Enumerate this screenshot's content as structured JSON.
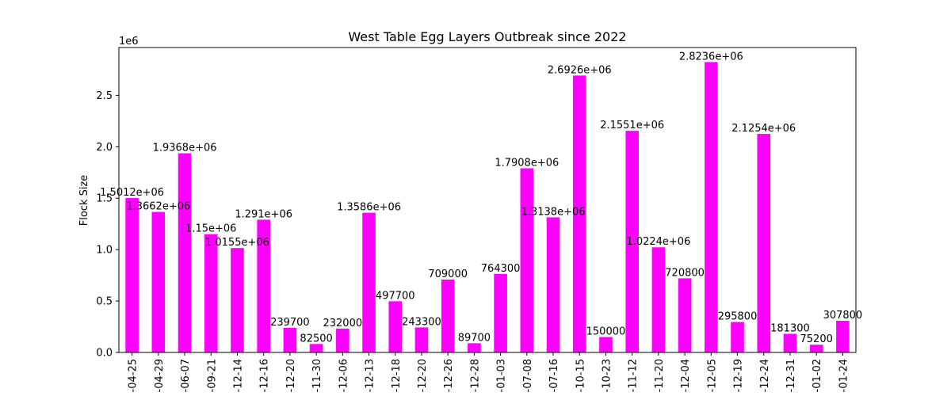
{
  "chart_data": {
    "type": "bar",
    "title": "West Table Egg Layers Outbreak since 2022",
    "xlabel": "",
    "ylabel": "Flock Size",
    "y_offset_label": "1e6",
    "ylim": [
      0,
      2965000
    ],
    "yticks": [
      0.0,
      0.5,
      1.0,
      1.5,
      2.0,
      2.5
    ],
    "bar_color": "#ff00ff",
    "grid": false,
    "legend": "none",
    "categories": [
      "-04-25",
      "-04-29",
      "-06-07",
      "-09-21",
      "-12-14",
      "-12-16",
      "-12-20",
      "-11-30",
      "-12-06",
      "-12-13",
      "-12-18",
      "-12-20",
      "-12-26",
      "-12-28",
      "-01-03",
      "-07-08",
      "-07-16",
      "-10-15",
      "-10-23",
      "-11-12",
      "-11-20",
      "-12-04",
      "-12-05",
      "-12-19",
      "-12-24",
      "-12-31",
      "-01-02",
      "-01-24"
    ],
    "values": [
      1501200,
      1366200,
      1936800,
      1150000,
      1015500,
      1291000,
      239700,
      82500,
      232000,
      1358600,
      497700,
      243300,
      709000,
      89700,
      764300,
      1790800,
      1313800,
      2692600,
      150000,
      2155100,
      1022400,
      720800,
      2823600,
      295800,
      2125400,
      181300,
      75200,
      307800
    ],
    "data_labels": [
      "1.5012e+06",
      "1.3662e+06",
      "1.9368e+06",
      "1.15e+06",
      "1.0155e+06",
      "1.291e+06",
      "239700",
      "82500",
      "232000",
      "1.3586e+06",
      "497700",
      "243300",
      "709000",
      "89700",
      "764300",
      "1.7908e+06",
      "1.3138e+06",
      "2.6926e+06",
      "150000",
      "2.1551e+06",
      "1.0224e+06",
      "720800",
      "2.8236e+06",
      "295800",
      "2.1254e+06",
      "181300",
      "75200",
      "307800"
    ]
  }
}
